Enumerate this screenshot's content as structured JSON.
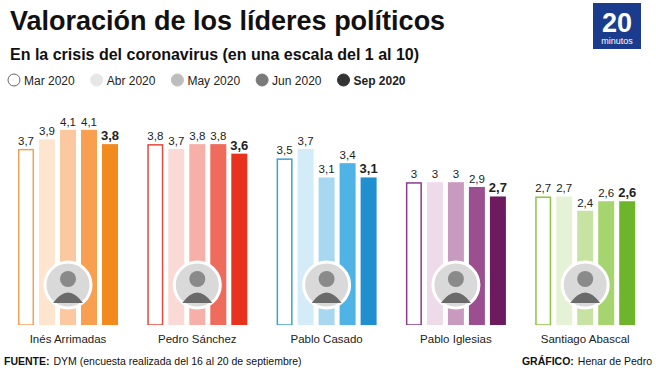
{
  "chart_data": {
    "type": "bar",
    "title": "Valoración de los líderes políticos",
    "subtitle": "En la crisis del coronavirus (en una escala del 1 al 10)",
    "categories": [
      "Inés Arrimadas",
      "Pedro Sánchez",
      "Pablo Casado",
      "Pablo Iglesias",
      "Santiago Abascal"
    ],
    "series": [
      {
        "name": "Mar 2020",
        "color": "#ffffff",
        "colors": [
          "#f5a05a",
          "#e8473a",
          "#3aa0d8",
          "#8a3a8a",
          "#8cc63f"
        ],
        "values": [
          3.7,
          3.8,
          3.5,
          3,
          2.7
        ],
        "value_labels": [
          "3,7",
          "3,8",
          "3,5",
          "3",
          "2,7"
        ]
      },
      {
        "name": "Abr 2020",
        "color": "#e6e6e6",
        "colors": [
          "#fde5d0",
          "#fbd9d5",
          "#d4ecf8",
          "#eedbe9",
          "#e6f2d6"
        ],
        "values": [
          3.9,
          3.7,
          3.7,
          3,
          2.7
        ],
        "value_labels": [
          "3,9",
          "3,7",
          "3,7",
          "3",
          "2,7"
        ]
      },
      {
        "name": "May 2020",
        "color": "#bdbdbd",
        "colors": [
          "#fcc8a0",
          "#f7b0a8",
          "#a8d8f0",
          "#c99ac0",
          "#c7e3a4"
        ],
        "values": [
          4.1,
          3.8,
          3.1,
          3,
          2.4
        ],
        "value_labels": [
          "4,1",
          "3,8",
          "3,1",
          "3",
          "2,4"
        ]
      },
      {
        "name": "Jun 2020",
        "color": "#7a7a7a",
        "colors": [
          "#f9a050",
          "#ef6b5c",
          "#4fb3e6",
          "#9c4f90",
          "#a6d46e"
        ],
        "values": [
          4.1,
          3.8,
          3.4,
          2.9,
          2.6
        ],
        "value_labels": [
          "4,1",
          "3,8",
          "3,4",
          "2,9",
          "2,6"
        ]
      },
      {
        "name": "Sep 2020",
        "color": "#333333",
        "colors": [
          "#f28a1e",
          "#e8321e",
          "#1f8fcf",
          "#6e1a5e",
          "#6fb52c"
        ],
        "values": [
          3.8,
          3.6,
          3.1,
          2.7,
          2.6
        ],
        "value_labels": [
          "3,8",
          "3,6",
          "3,1",
          "2,7",
          "2,6"
        ]
      }
    ],
    "ylim": [
      0,
      5
    ],
    "tick_labels": "x",
    "data_labels": true,
    "legend": "top-left",
    "annotations": [
      "FUENTE:",
      "DYM (encuesta realizada del 16 al 20 de septiembre)",
      "GRÁFICO:",
      "Henar de Pedro",
      "20",
      "minutos"
    ]
  }
}
